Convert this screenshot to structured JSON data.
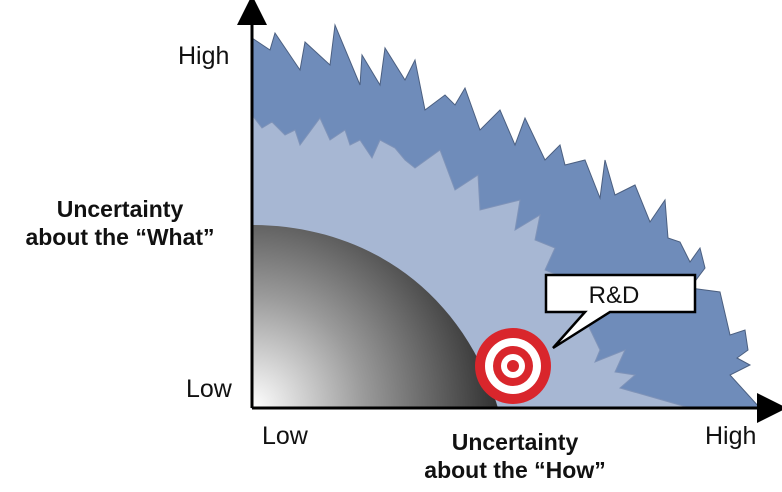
{
  "y_axis": {
    "title_line1": "Uncertainty",
    "title_line2": "about the “What”",
    "high_label": "High",
    "low_label": "Low"
  },
  "x_axis": {
    "title_line1": "Uncertainty",
    "title_line2": "about the “How”",
    "low_label": "Low",
    "high_label": "High"
  },
  "callout": {
    "label": "R&D"
  },
  "colors": {
    "outer_zone": "#6f8cba",
    "middle_zone": "#a7b7d3",
    "inner_zone_dark": "#2f2f2f",
    "inner_zone_light": "#ffffff",
    "target_red": "#d9262c",
    "axis": "#000000"
  },
  "icons": {
    "target": "bullseye-target-icon"
  }
}
